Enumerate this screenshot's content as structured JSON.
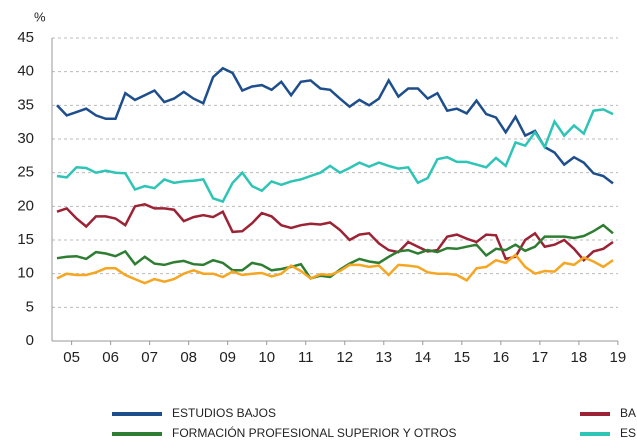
{
  "chart_data": {
    "type": "line",
    "y_label": "%",
    "x": [
      4.625,
      4.875,
      5.125,
      5.375,
      5.625,
      5.875,
      6.125,
      6.375,
      6.625,
      6.875,
      7.125,
      7.375,
      7.625,
      7.875,
      8.125,
      8.375,
      8.625,
      8.875,
      9.125,
      9.375,
      9.625,
      9.875,
      10.125,
      10.375,
      10.625,
      10.875,
      11.125,
      11.375,
      11.625,
      11.875,
      12.125,
      12.375,
      12.625,
      12.875,
      13.125,
      13.375,
      13.625,
      13.875,
      14.125,
      14.375,
      14.625,
      14.875,
      15.125,
      15.375,
      15.625,
      15.875,
      16.125,
      16.375,
      16.625,
      16.875,
      17.125,
      17.375,
      17.625,
      17.875,
      18.125,
      18.375,
      18.625,
      18.875
    ],
    "series": [
      {
        "name": "ESTUDIOS BAJOS",
        "color": "#1f4e8c",
        "values": [
          35,
          33.5,
          34,
          34.5,
          33.5,
          33,
          33,
          36.8,
          35.8,
          36.5,
          37.2,
          35.5,
          36,
          37,
          36,
          35.3,
          39.2,
          40.5,
          39.8,
          37.2,
          37.8,
          38,
          37.3,
          38.5,
          36.5,
          38.5,
          38.7,
          37.5,
          37.3,
          36,
          34.8,
          35.8,
          35,
          36,
          38.7,
          36.3,
          37.5,
          37.5,
          36,
          36.8,
          34.2,
          34.5,
          33.8,
          35.7,
          33.7,
          33.2,
          31,
          33.3,
          30.5,
          31.2,
          28.8,
          28,
          26.2,
          27.3,
          26.5,
          24.9,
          24.5,
          23.4
        ]
      },
      {
        "name": "BA",
        "color": "#9b2335",
        "values": [
          19.2,
          19.7,
          18.2,
          17,
          18.5,
          18.5,
          18.2,
          17.2,
          20,
          20.3,
          19.7,
          19.7,
          19.5,
          17.8,
          18.4,
          18.7,
          18.4,
          19.2,
          16.2,
          16.3,
          17.5,
          19,
          18.5,
          17.2,
          16.8,
          17.2,
          17.4,
          17.3,
          17.6,
          16.5,
          15,
          15.8,
          16,
          14.5,
          13.5,
          13.2,
          14.7,
          14,
          13.3,
          13.5,
          15.5,
          15.8,
          15.2,
          14.7,
          15.8,
          15.7,
          12.2,
          12.5,
          15,
          16,
          14,
          14.3,
          15,
          13.7,
          12,
          13.3,
          13.7,
          14.7
        ]
      },
      {
        "name": "FORMACIÓN PROFESIONAL SUPERIOR Y OTROS",
        "color": "#2e7d32",
        "values": [
          12.3,
          12.5,
          12.6,
          12.2,
          13.2,
          13,
          12.6,
          13.3,
          11.4,
          12.5,
          11.5,
          11.3,
          11.7,
          11.9,
          11.4,
          11.3,
          12,
          11.6,
          10.5,
          10.5,
          11.6,
          11.3,
          10.5,
          10.7,
          11,
          11.4,
          9.3,
          9.7,
          9.5,
          10.6,
          11.5,
          12.2,
          11.8,
          11.6,
          12.5,
          13.3,
          13.5,
          13,
          13.5,
          13.2,
          13.8,
          13.7,
          14,
          14.3,
          12.7,
          13.7,
          13.5,
          14.3,
          13.4,
          14,
          15.5,
          15.5,
          15.5,
          15.3,
          15.6,
          16.3,
          17.2,
          16
        ]
      },
      {
        "name": "ES",
        "color": "#2ec4b6",
        "values": [
          24.5,
          24.3,
          25.8,
          25.7,
          25,
          25.3,
          25,
          24.9,
          22.5,
          23,
          22.7,
          24,
          23.5,
          23.7,
          23.8,
          24,
          21.2,
          20.7,
          23.5,
          25,
          23,
          22.3,
          23.7,
          23.2,
          23.7,
          24,
          24.5,
          25,
          26,
          25,
          25.7,
          26.5,
          25.9,
          26.5,
          26,
          25.6,
          25.8,
          23.5,
          24.2,
          27,
          27.3,
          26.6,
          26.6,
          26.2,
          25.8,
          27.2,
          26,
          29.5,
          29,
          31,
          28.8,
          32.6,
          30.5,
          32,
          30.8,
          34.2,
          34.4,
          33.7
        ]
      },
      {
        "color": "#f5a623",
        "values": [
          9.3,
          10,
          9.8,
          9.8,
          10.2,
          10.8,
          10.8,
          9.8,
          9.2,
          8.6,
          9.2,
          8.8,
          9.2,
          10,
          10.5,
          10,
          10,
          9.5,
          10.3,
          9.8,
          10,
          10.1,
          9.6,
          10,
          11.2,
          10.4,
          9.3,
          9.9,
          9.8,
          10.4,
          11.3,
          11.3,
          11,
          11.2,
          9.8,
          11.3,
          11.2,
          11,
          10.2,
          10,
          10,
          9.8,
          9,
          10.8,
          11,
          12,
          11.6,
          12.8,
          11,
          10,
          10.4,
          10.3,
          11.6,
          11.3,
          12.4,
          11.8,
          11,
          12
        ]
      }
    ],
    "xlim": [
      4.6,
      18.9
    ],
    "xticks": [
      {
        "value": 5,
        "label": "05"
      },
      {
        "value": 6,
        "label": "06"
      },
      {
        "value": 7,
        "label": "07"
      },
      {
        "value": 8,
        "label": "08"
      },
      {
        "value": 9,
        "label": "09"
      },
      10,
      11,
      12,
      13,
      14,
      15,
      16,
      17,
      18,
      19
    ],
    "ylim": [
      0,
      45
    ],
    "yticks": [
      0,
      5,
      10,
      15,
      20,
      25,
      30,
      35,
      40,
      45
    ],
    "grid": true
  }
}
